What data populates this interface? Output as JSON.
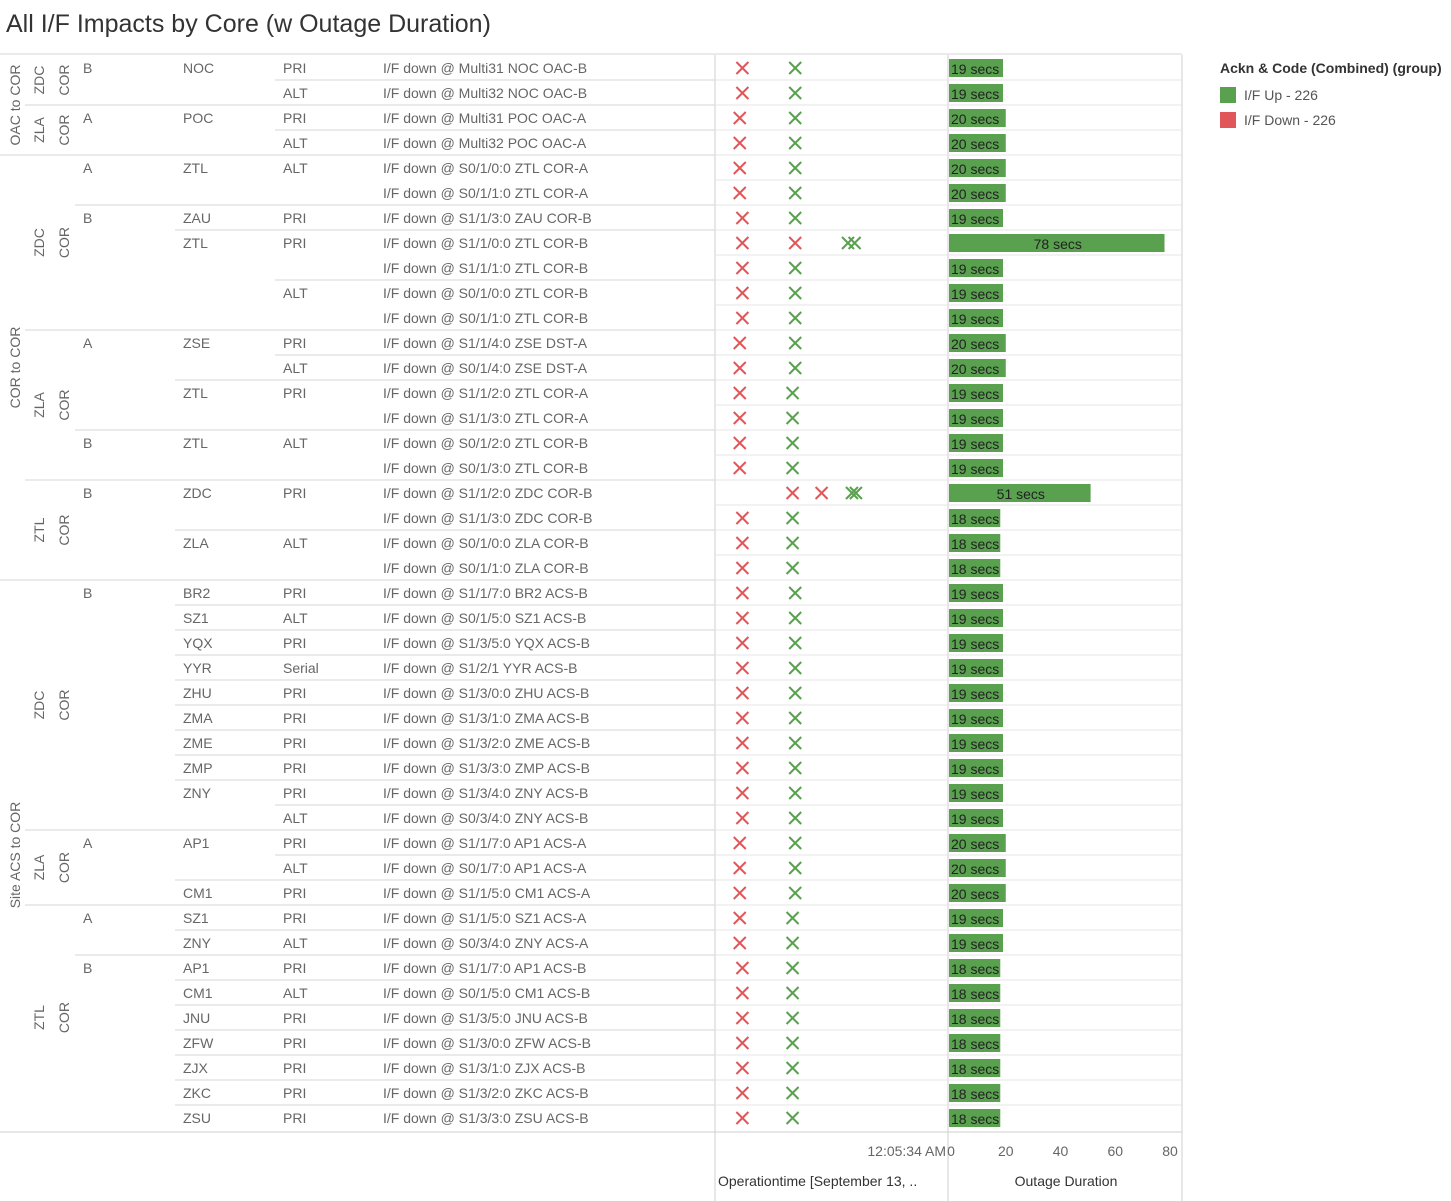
{
  "title": "All I/F Impacts by Core (w Outage Duration)",
  "legend": {
    "title": "Ackn & Code (Combined) (group)",
    "items": [
      {
        "label": "I/F Up - 226",
        "color": "#59a14f"
      },
      {
        "label": "I/F Down - 226",
        "color": "#e15759"
      }
    ]
  },
  "footer": {
    "time_axis_label": "Operationtime [September 13, ..",
    "time_tick": "12:05:34 AM",
    "duration_axis_label": "Outage Duration",
    "duration_ticks": [
      "0",
      "20",
      "40",
      "60",
      "80"
    ]
  },
  "colors": {
    "up": "#59a14f",
    "down": "#e15759",
    "bar": "#59a14f"
  },
  "chart_data": {
    "type": "bar",
    "xlabel": "Outage Duration",
    "xlim": [
      0,
      80
    ],
    "rows": [
      {
        "group": "OAC to COR",
        "core": "ZDC",
        "cortype": "COR",
        "side": "B",
        "site": "NOC",
        "link": "PRI",
        "desc": "I/F down @ Multi31 NOC OAC-B",
        "down": [
          0.2
        ],
        "up": [
          0.6
        ],
        "secs": 19,
        "label": "19 secs"
      },
      {
        "group": "OAC to COR",
        "core": "ZDC",
        "cortype": "COR",
        "side": "B",
        "site": "NOC",
        "link": "ALT",
        "desc": "I/F down @ Multi32 NOC OAC-B",
        "down": [
          0.2
        ],
        "up": [
          0.6
        ],
        "secs": 19,
        "label": "19 secs"
      },
      {
        "group": "OAC to COR",
        "core": "ZLA",
        "cortype": "COR",
        "side": "A",
        "site": "POC",
        "link": "PRI",
        "desc": "I/F down @ Multi31 POC OAC-A",
        "down": [
          0.18
        ],
        "up": [
          0.6
        ],
        "secs": 20,
        "label": "20 secs"
      },
      {
        "group": "OAC to COR",
        "core": "ZLA",
        "cortype": "COR",
        "side": "A",
        "site": "POC",
        "link": "ALT",
        "desc": "I/F down @ Multi32 POC OAC-A",
        "down": [
          0.18
        ],
        "up": [
          0.6
        ],
        "secs": 20,
        "label": "20 secs"
      },
      {
        "group": "COR to COR",
        "core": "ZDC",
        "cortype": "COR",
        "side": "A",
        "site": "ZTL",
        "link": "ALT",
        "desc": "I/F down @ S0/1/0:0 ZTL COR-A",
        "down": [
          0.18
        ],
        "up": [
          0.6
        ],
        "secs": 20,
        "label": "20 secs"
      },
      {
        "group": "COR to COR",
        "core": "ZDC",
        "cortype": "COR",
        "side": "A",
        "site": "ZTL",
        "link": "ALT",
        "desc": "I/F down @ S0/1/1:0 ZTL COR-A",
        "down": [
          0.18
        ],
        "up": [
          0.6
        ],
        "secs": 20,
        "label": "20 secs"
      },
      {
        "group": "COR to COR",
        "core": "ZDC",
        "cortype": "COR",
        "side": "B",
        "site": "ZAU",
        "link": "PRI",
        "desc": "I/F down @ S1/1/3:0 ZAU COR-B",
        "down": [
          0.2
        ],
        "up": [
          0.6
        ],
        "secs": 19,
        "label": "19 secs"
      },
      {
        "group": "COR to COR",
        "core": "ZDC",
        "cortype": "COR",
        "side": "B",
        "site": "ZTL",
        "link": "PRI",
        "desc": "I/F down @ S1/1/0:0 ZTL COR-B",
        "down": [
          0.2,
          0.6
        ],
        "up": [
          1.0,
          1.05
        ],
        "secs": 78,
        "label": "78 secs"
      },
      {
        "group": "COR to COR",
        "core": "ZDC",
        "cortype": "COR",
        "side": "B",
        "site": "ZTL",
        "link": "PRI",
        "desc": "I/F down @ S1/1/1:0 ZTL COR-B",
        "down": [
          0.2
        ],
        "up": [
          0.6
        ],
        "secs": 19,
        "label": "19 secs"
      },
      {
        "group": "COR to COR",
        "core": "ZDC",
        "cortype": "COR",
        "side": "B",
        "site": "ZTL",
        "link": "ALT",
        "desc": "I/F down @ S0/1/0:0 ZTL COR-B",
        "down": [
          0.2
        ],
        "up": [
          0.6
        ],
        "secs": 19,
        "label": "19 secs"
      },
      {
        "group": "COR to COR",
        "core": "ZDC",
        "cortype": "COR",
        "side": "B",
        "site": "ZTL",
        "link": "ALT",
        "desc": "I/F down @ S0/1/1:0 ZTL COR-B",
        "down": [
          0.2
        ],
        "up": [
          0.6
        ],
        "secs": 19,
        "label": "19 secs"
      },
      {
        "group": "COR to COR",
        "core": "ZLA",
        "cortype": "COR",
        "side": "A",
        "site": "ZSE",
        "link": "PRI",
        "desc": "I/F down @ S1/1/4:0 ZSE DST-A",
        "down": [
          0.18
        ],
        "up": [
          0.6
        ],
        "secs": 20,
        "label": "20 secs"
      },
      {
        "group": "COR to COR",
        "core": "ZLA",
        "cortype": "COR",
        "side": "A",
        "site": "ZSE",
        "link": "ALT",
        "desc": "I/F down @ S0/1/4:0 ZSE DST-A",
        "down": [
          0.18
        ],
        "up": [
          0.6
        ],
        "secs": 20,
        "label": "20 secs"
      },
      {
        "group": "COR to COR",
        "core": "ZLA",
        "cortype": "COR",
        "side": "A",
        "site": "ZTL",
        "link": "PRI",
        "desc": "I/F down @ S1/1/2:0 ZTL COR-A",
        "down": [
          0.18
        ],
        "up": [
          0.58
        ],
        "secs": 19,
        "label": "19 secs"
      },
      {
        "group": "COR to COR",
        "core": "ZLA",
        "cortype": "COR",
        "side": "A",
        "site": "ZTL",
        "link": "PRI",
        "desc": "I/F down @ S1/1/3:0 ZTL COR-A",
        "down": [
          0.18
        ],
        "up": [
          0.58
        ],
        "secs": 19,
        "label": "19 secs"
      },
      {
        "group": "COR to COR",
        "core": "ZLA",
        "cortype": "COR",
        "side": "B",
        "site": "ZTL",
        "link": "ALT",
        "desc": "I/F down @ S0/1/2:0 ZTL COR-B",
        "down": [
          0.18
        ],
        "up": [
          0.58
        ],
        "secs": 19,
        "label": "19 secs"
      },
      {
        "group": "COR to COR",
        "core": "ZLA",
        "cortype": "COR",
        "side": "B",
        "site": "ZTL",
        "link": "ALT",
        "desc": "I/F down @ S0/1/3:0 ZTL COR-B",
        "down": [
          0.18
        ],
        "up": [
          0.58
        ],
        "secs": 19,
        "label": "19 secs"
      },
      {
        "group": "COR to COR",
        "core": "ZTL",
        "cortype": "COR",
        "side": "B",
        "site": "ZDC",
        "link": "PRI",
        "desc": "I/F down @ S1/1/2:0 ZDC COR-B",
        "down": [
          0.58,
          0.8
        ],
        "up": [
          1.03,
          1.06
        ],
        "secs": 51,
        "label": "51 secs"
      },
      {
        "group": "COR to COR",
        "core": "ZTL",
        "cortype": "COR",
        "side": "B",
        "site": "ZDC",
        "link": "PRI",
        "desc": "I/F down @ S1/1/3:0 ZDC COR-B",
        "down": [
          0.2
        ],
        "up": [
          0.58
        ],
        "secs": 18,
        "label": "18 secs"
      },
      {
        "group": "COR to COR",
        "core": "ZTL",
        "cortype": "COR",
        "side": "B",
        "site": "ZLA",
        "link": "ALT",
        "desc": "I/F down @ S0/1/0:0 ZLA COR-B",
        "down": [
          0.2
        ],
        "up": [
          0.58
        ],
        "secs": 18,
        "label": "18 secs"
      },
      {
        "group": "COR to COR",
        "core": "ZTL",
        "cortype": "COR",
        "side": "B",
        "site": "ZLA",
        "link": "ALT",
        "desc": "I/F down @ S0/1/1:0 ZLA COR-B",
        "down": [
          0.2
        ],
        "up": [
          0.58
        ],
        "secs": 18,
        "label": "18 secs"
      },
      {
        "group": "Site ACS to COR",
        "core": "ZDC",
        "cortype": "COR",
        "side": "B",
        "site": "BR2",
        "link": "PRI",
        "desc": "I/F down @ S1/1/7:0 BR2 ACS-B",
        "down": [
          0.2
        ],
        "up": [
          0.6
        ],
        "secs": 19,
        "label": "19 secs"
      },
      {
        "group": "Site ACS to COR",
        "core": "ZDC",
        "cortype": "COR",
        "side": "B",
        "site": "SZ1",
        "link": "ALT",
        "desc": "I/F down @ S0/1/5:0 SZ1 ACS-B",
        "down": [
          0.2
        ],
        "up": [
          0.6
        ],
        "secs": 19,
        "label": "19 secs"
      },
      {
        "group": "Site ACS to COR",
        "core": "ZDC",
        "cortype": "COR",
        "side": "B",
        "site": "YQX",
        "link": "PRI",
        "desc": "I/F down @ S1/3/5:0 YQX ACS-B",
        "down": [
          0.2
        ],
        "up": [
          0.6
        ],
        "secs": 19,
        "label": "19 secs"
      },
      {
        "group": "Site ACS to COR",
        "core": "ZDC",
        "cortype": "COR",
        "side": "B",
        "site": "YYR",
        "link": "Serial",
        "desc": "I/F down @ S1/2/1 YYR ACS-B",
        "down": [
          0.2
        ],
        "up": [
          0.6
        ],
        "secs": 19,
        "label": "19 secs"
      },
      {
        "group": "Site ACS to COR",
        "core": "ZDC",
        "cortype": "COR",
        "side": "B",
        "site": "ZHU",
        "link": "PRI",
        "desc": "I/F down @ S1/3/0:0 ZHU ACS-B",
        "down": [
          0.2
        ],
        "up": [
          0.6
        ],
        "secs": 19,
        "label": "19 secs"
      },
      {
        "group": "Site ACS to COR",
        "core": "ZDC",
        "cortype": "COR",
        "side": "B",
        "site": "ZMA",
        "link": "PRI",
        "desc": "I/F down @ S1/3/1:0 ZMA ACS-B",
        "down": [
          0.2
        ],
        "up": [
          0.6
        ],
        "secs": 19,
        "label": "19 secs"
      },
      {
        "group": "Site ACS to COR",
        "core": "ZDC",
        "cortype": "COR",
        "side": "B",
        "site": "ZME",
        "link": "PRI",
        "desc": "I/F down @ S1/3/2:0 ZME ACS-B",
        "down": [
          0.2
        ],
        "up": [
          0.6
        ],
        "secs": 19,
        "label": "19 secs"
      },
      {
        "group": "Site ACS to COR",
        "core": "ZDC",
        "cortype": "COR",
        "side": "B",
        "site": "ZMP",
        "link": "PRI",
        "desc": "I/F down @ S1/3/3:0 ZMP ACS-B",
        "down": [
          0.2
        ],
        "up": [
          0.6
        ],
        "secs": 19,
        "label": "19 secs"
      },
      {
        "group": "Site ACS to COR",
        "core": "ZDC",
        "cortype": "COR",
        "side": "B",
        "site": "ZNY",
        "link": "PRI",
        "desc": "I/F down @ S1/3/4:0 ZNY ACS-B",
        "down": [
          0.2
        ],
        "up": [
          0.6
        ],
        "secs": 19,
        "label": "19 secs"
      },
      {
        "group": "Site ACS to COR",
        "core": "ZDC",
        "cortype": "COR",
        "side": "B",
        "site": "ZNY",
        "link": "ALT",
        "desc": "I/F down @ S0/3/4:0 ZNY ACS-B",
        "down": [
          0.2
        ],
        "up": [
          0.6
        ],
        "secs": 19,
        "label": "19 secs"
      },
      {
        "group": "Site ACS to COR",
        "core": "ZLA",
        "cortype": "COR",
        "side": "A",
        "site": "AP1",
        "link": "PRI",
        "desc": "I/F down @ S1/1/7:0 AP1 ACS-A",
        "down": [
          0.18
        ],
        "up": [
          0.6
        ],
        "secs": 20,
        "label": "20 secs"
      },
      {
        "group": "Site ACS to COR",
        "core": "ZLA",
        "cortype": "COR",
        "side": "A",
        "site": "AP1",
        "link": "ALT",
        "desc": "I/F down @ S0/1/7:0 AP1 ACS-A",
        "down": [
          0.18
        ],
        "up": [
          0.6
        ],
        "secs": 20,
        "label": "20 secs"
      },
      {
        "group": "Site ACS to COR",
        "core": "ZLA",
        "cortype": "COR",
        "side": "A",
        "site": "CM1",
        "link": "PRI",
        "desc": "I/F down @ S1/1/5:0 CM1 ACS-A",
        "down": [
          0.18
        ],
        "up": [
          0.6
        ],
        "secs": 20,
        "label": "20 secs"
      },
      {
        "group": "Site ACS to COR",
        "core": "ZTL",
        "cortype": "COR",
        "side": "A",
        "site": "SZ1",
        "link": "PRI",
        "desc": "I/F down @ S1/1/5:0 SZ1 ACS-A",
        "down": [
          0.18
        ],
        "up": [
          0.58
        ],
        "secs": 19,
        "label": "19 secs"
      },
      {
        "group": "Site ACS to COR",
        "core": "ZTL",
        "cortype": "COR",
        "side": "A",
        "site": "ZNY",
        "link": "ALT",
        "desc": "I/F down @ S0/3/4:0 ZNY ACS-A",
        "down": [
          0.18
        ],
        "up": [
          0.58
        ],
        "secs": 19,
        "label": "19 secs"
      },
      {
        "group": "Site ACS to COR",
        "core": "ZTL",
        "cortype": "COR",
        "side": "B",
        "site": "AP1",
        "link": "PRI",
        "desc": "I/F down @ S1/1/7:0 AP1 ACS-B",
        "down": [
          0.2
        ],
        "up": [
          0.58
        ],
        "secs": 18,
        "label": "18 secs"
      },
      {
        "group": "Site ACS to COR",
        "core": "ZTL",
        "cortype": "COR",
        "side": "B",
        "site": "CM1",
        "link": "ALT",
        "desc": "I/F down @ S0/1/5:0 CM1 ACS-B",
        "down": [
          0.2
        ],
        "up": [
          0.58
        ],
        "secs": 18,
        "label": "18 secs"
      },
      {
        "group": "Site ACS to COR",
        "core": "ZTL",
        "cortype": "COR",
        "side": "B",
        "site": "JNU",
        "link": "PRI",
        "desc": "I/F down @ S1/3/5:0 JNU ACS-B",
        "down": [
          0.2
        ],
        "up": [
          0.58
        ],
        "secs": 18,
        "label": "18 secs"
      },
      {
        "group": "Site ACS to COR",
        "core": "ZTL",
        "cortype": "COR",
        "side": "B",
        "site": "ZFW",
        "link": "PRI",
        "desc": "I/F down @ S1/3/0:0 ZFW ACS-B",
        "down": [
          0.2
        ],
        "up": [
          0.58
        ],
        "secs": 18,
        "label": "18 secs"
      },
      {
        "group": "Site ACS to COR",
        "core": "ZTL",
        "cortype": "COR",
        "side": "B",
        "site": "ZJX",
        "link": "PRI",
        "desc": "I/F down @ S1/3/1:0 ZJX ACS-B",
        "down": [
          0.2
        ],
        "up": [
          0.58
        ],
        "secs": 18,
        "label": "18 secs"
      },
      {
        "group": "Site ACS to COR",
        "core": "ZTL",
        "cortype": "COR",
        "side": "B",
        "site": "ZKC",
        "link": "PRI",
        "desc": "I/F down @ S1/3/2:0 ZKC ACS-B",
        "down": [
          0.2
        ],
        "up": [
          0.58
        ],
        "secs": 18,
        "label": "18 secs"
      },
      {
        "group": "Site ACS to COR",
        "core": "ZTL",
        "cortype": "COR",
        "side": "B",
        "site": "ZSU",
        "link": "PRI",
        "desc": "I/F down @ S1/3/3:0 ZSU ACS-B",
        "down": [
          0.2
        ],
        "up": [
          0.58
        ],
        "secs": 18,
        "label": "18 secs"
      }
    ]
  }
}
